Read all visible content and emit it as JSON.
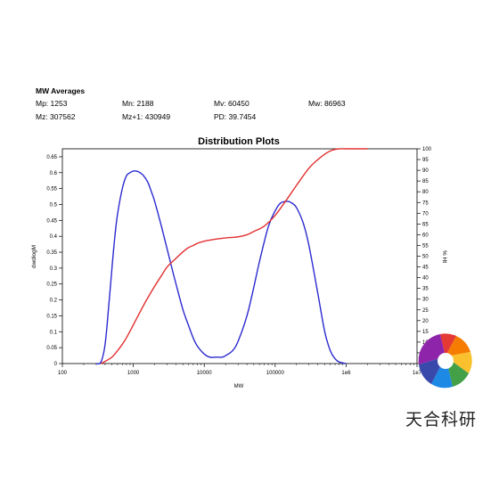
{
  "mw_averages": {
    "title": "MW Averages",
    "row1": [
      "Mp: 1253",
      "Mn: 2188",
      "Mv: 60450",
      "Mw: 86963"
    ],
    "row2": [
      "Mz: 307562",
      "Mz+1: 430949",
      "PD: 39.7454"
    ]
  },
  "watermark": {
    "text": "天合科研"
  },
  "chart_data": {
    "type": "line",
    "title": "Distribution Plots",
    "xlabel": "MW",
    "ylabel": "dwdlogM",
    "y2label": "% Ht",
    "x_scale": "log",
    "xlim": [
      100,
      10000000
    ],
    "ylim": [
      0,
      0.675
    ],
    "y2lim": [
      0,
      100
    ],
    "x_ticks": [
      "100",
      "1000",
      "10000",
      "100000",
      "1e6",
      "1e7"
    ],
    "y_ticks": [
      "0",
      "0.05",
      "0.1",
      "0.15",
      "0.2",
      "0.25",
      "0.3",
      "0.35",
      "0.4",
      "0.45",
      "0.5",
      "0.55",
      "0.6",
      "0.65"
    ],
    "y2_ticks": [
      "0",
      "5",
      "10",
      "15",
      "20",
      "25",
      "30",
      "35",
      "40",
      "45",
      "50",
      "55",
      "60",
      "65",
      "70",
      "75",
      "80",
      "85",
      "90",
      "95",
      "100"
    ],
    "grid": false,
    "series": [
      {
        "color": "#2a2ad0",
        "axis": "left",
        "x": [
          300,
          350,
          400,
          450,
          500,
          550,
          600,
          700,
          800,
          900,
          1000,
          1100,
          1250,
          1400,
          1600,
          1800,
          2000,
          2500,
          3000,
          3500,
          4000,
          5000,
          6000,
          7000,
          8000,
          10000,
          12000,
          15000,
          18000,
          20000,
          25000,
          30000,
          40000,
          50000,
          60000,
          80000,
          100000,
          120000,
          150000,
          170000,
          200000,
          250000,
          300000,
          400000,
          500000,
          600000,
          700000,
          800000,
          1000000
        ],
        "y": [
          0.0,
          0.005,
          0.06,
          0.18,
          0.3,
          0.4,
          0.47,
          0.55,
          0.59,
          0.6,
          0.605,
          0.605,
          0.6,
          0.59,
          0.57,
          0.54,
          0.51,
          0.43,
          0.36,
          0.3,
          0.25,
          0.17,
          0.12,
          0.08,
          0.055,
          0.03,
          0.02,
          0.02,
          0.02,
          0.025,
          0.04,
          0.07,
          0.15,
          0.24,
          0.32,
          0.43,
          0.48,
          0.505,
          0.51,
          0.505,
          0.49,
          0.44,
          0.37,
          0.22,
          0.1,
          0.04,
          0.015,
          0.005,
          0.0
        ]
      },
      {
        "color": "#e23030",
        "axis": "right",
        "x": [
          350,
          400,
          450,
          500,
          600,
          700,
          800,
          1000,
          1200,
          1500,
          2000,
          2500,
          3000,
          4000,
          5000,
          6000,
          7000,
          8000,
          10000,
          15000,
          20000,
          30000,
          40000,
          50000,
          70000,
          100000,
          150000,
          200000,
          300000,
          400000,
          500000,
          600000,
          700000,
          800000,
          1000000,
          2000000
        ],
        "y": [
          0,
          1,
          2,
          3,
          6,
          9,
          12,
          18,
          23,
          29,
          36,
          41,
          45,
          49,
          52,
          54,
          55,
          56,
          57,
          58,
          58.5,
          59,
          60,
          61.5,
          64,
          69,
          77,
          83,
          91,
          95,
          97.5,
          99,
          99.7,
          100,
          100,
          100
        ]
      }
    ]
  }
}
